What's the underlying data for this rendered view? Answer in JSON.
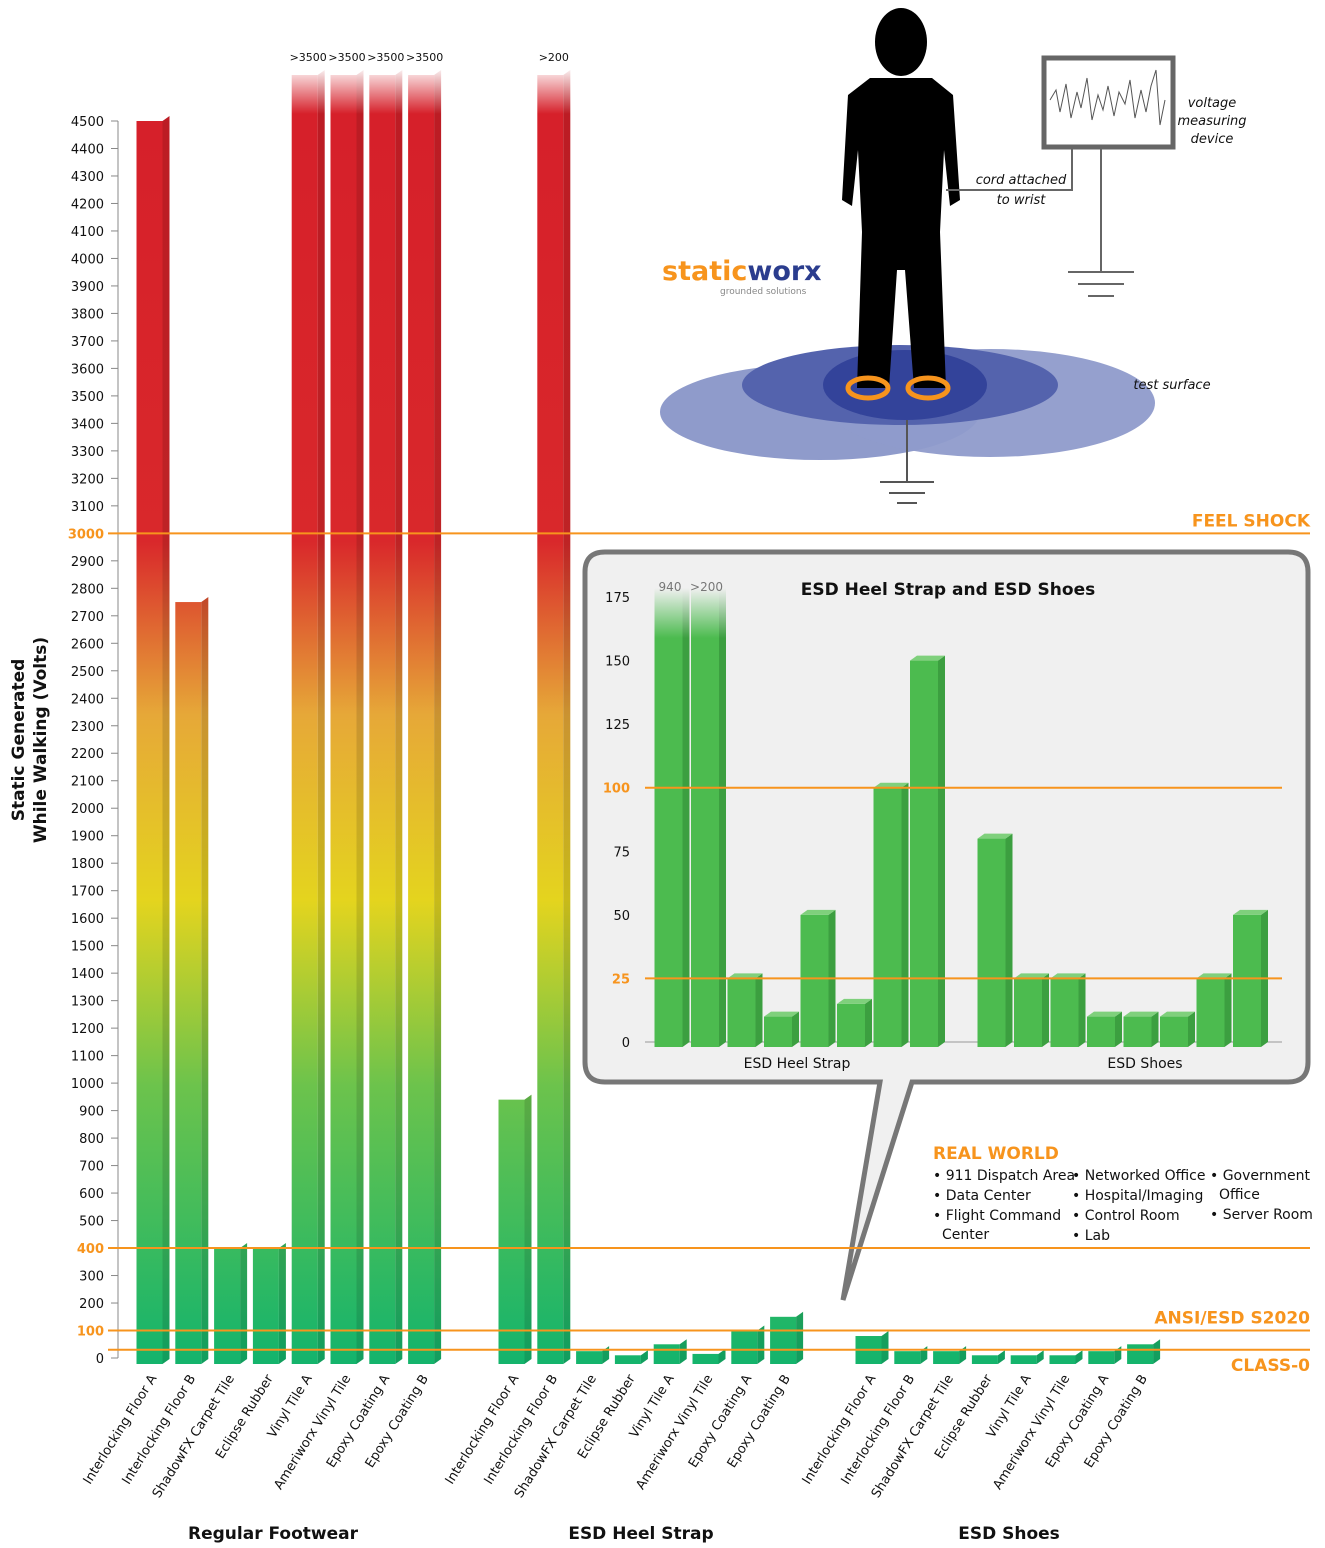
{
  "chart_data": {
    "type": "bar",
    "ylabel_lines": [
      "Static Generated",
      "While Walking (Volts)"
    ],
    "ylim": [
      0,
      4500
    ],
    "yticks": [
      0,
      100,
      200,
      300,
      400,
      500,
      600,
      700,
      800,
      900,
      1000,
      1100,
      1200,
      1300,
      1400,
      1500,
      1600,
      1700,
      1800,
      1900,
      2000,
      2100,
      2200,
      2300,
      2400,
      2500,
      2600,
      2700,
      2800,
      2900,
      3000,
      3100,
      3200,
      3300,
      3400,
      3500,
      3600,
      3700,
      3800,
      3900,
      4000,
      4100,
      4200,
      4300,
      4400,
      4500
    ],
    "reference_lines": [
      {
        "value": 3000,
        "label": "FEEL SHOCK"
      },
      {
        "value": 400
      },
      {
        "value": 100,
        "label": "ANSI/ESD S2020"
      },
      {
        "value": 30,
        "label": "CLASS-0"
      }
    ],
    "reference_color": "#f7941d",
    "groups": [
      {
        "name": "Regular Footwear",
        "categories": [
          "Interlocking Floor A",
          "Interlocking Floor B",
          "ShadowFX Carpet Tile",
          "Eclipse Rubber",
          "Vinyl Tile A",
          "Ameriworx Vinyl Tile",
          "Epoxy Coating A",
          "Epoxy Coating B"
        ],
        "values": [
          4500,
          2750,
          400,
          400,
          3500,
          3500,
          3500,
          3500
        ],
        "value_labels": [
          null,
          null,
          null,
          null,
          ">3500",
          ">3500",
          ">3500",
          ">3500"
        ],
        "overflow": [
          false,
          false,
          false,
          false,
          true,
          true,
          true,
          true
        ]
      },
      {
        "name": "ESD Heel Strap",
        "categories": [
          "Interlocking Floor A",
          "Interlocking Floor B",
          "ShadowFX Carpet Tile",
          "Eclipse Rubber",
          "Vinyl Tile A",
          "Ameriworx Vinyl Tile",
          "Epoxy Coating A",
          "Epoxy Coating B"
        ],
        "values": [
          940,
          200,
          25,
          10,
          50,
          15,
          100,
          150
        ],
        "value_labels": [
          "940",
          ">200",
          null,
          null,
          null,
          null,
          null,
          null
        ],
        "overflow": [
          false,
          true,
          false,
          false,
          false,
          false,
          false,
          false
        ]
      },
      {
        "name": "ESD Shoes",
        "categories": [
          "Interlocking Floor A",
          "Interlocking Floor B",
          "ShadowFX Carpet Tile",
          "Eclipse Rubber",
          "Vinyl Tile A",
          "Ameriworx Vinyl Tile",
          "Epoxy Coating A",
          "Epoxy Coating B"
        ],
        "values": [
          80,
          25,
          25,
          10,
          10,
          10,
          25,
          50
        ]
      }
    ],
    "inset": {
      "title": "ESD Heel Strap and ESD Shoes",
      "groups": [
        1,
        2
      ],
      "ylim": [
        0,
        175
      ],
      "yticks": [
        0,
        25,
        50,
        75,
        100,
        125,
        150,
        175
      ],
      "reference_lines": [
        100,
        25
      ],
      "color": "#4cbb4f"
    }
  },
  "illustration": {
    "device_lines": [
      "voltage",
      "measuring",
      "device"
    ],
    "cord_lines": [
      "cord attached",
      "to wrist"
    ],
    "surface_label": "test surface",
    "logo": {
      "part1": "static",
      "part2": "worx",
      "tagline": "grounded solutions"
    }
  },
  "real_world": {
    "title": "REAL WORLD",
    "columns": [
      [
        [
          "• 911 Dispatch Area"
        ],
        [
          "• Data Center"
        ],
        [
          "• Flight Command",
          "Center"
        ]
      ],
      [
        [
          "• Networked Office"
        ],
        [
          "• Hospital/Imaging"
        ],
        [
          "• Control Room"
        ],
        [
          "• Lab"
        ]
      ],
      [
        [
          "• Government",
          "Office"
        ],
        [
          "• Server Room"
        ]
      ]
    ]
  }
}
